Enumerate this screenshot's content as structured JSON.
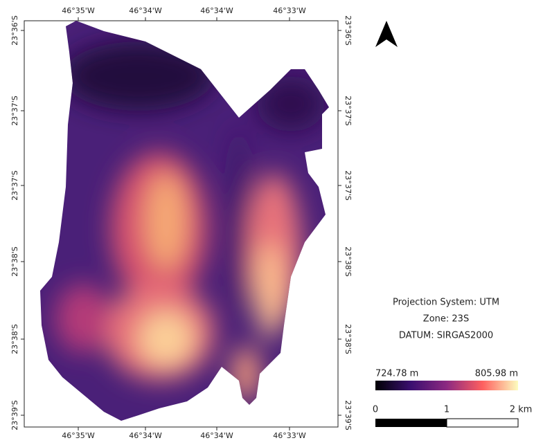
{
  "map": {
    "x_labels": [
      "46°35'W",
      "46°34'W",
      "46°34'W",
      "46°33'W"
    ],
    "y_labels": [
      "23°36'S",
      "23°37'S",
      "23°37'S",
      "23°38'S",
      "23°38'S",
      "23°39'S"
    ],
    "projection": [
      "Projection System: UTM",
      "Zone: 23S",
      "DATUM: SIRGAS2000"
    ],
    "legend": {
      "min_label": "724.78 m",
      "max_label": "805.98 m"
    },
    "scale": [
      "0",
      "1",
      "2 km"
    ]
  }
}
